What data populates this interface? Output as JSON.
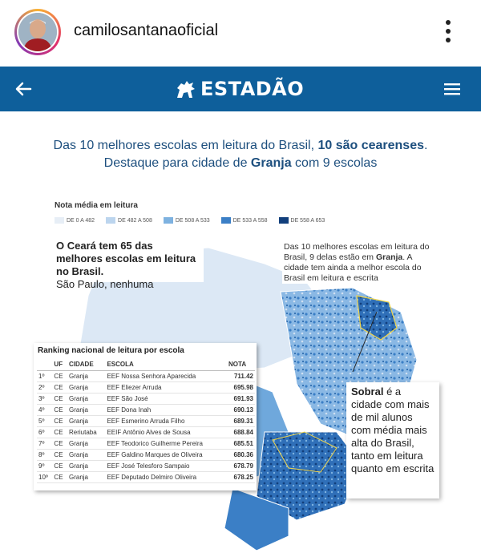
{
  "instagram": {
    "username": "camilosantanaoficial"
  },
  "estadao": {
    "brand": "ESTADÃO"
  },
  "headline": {
    "line1_part1": "Das 10 melhores escolas em leitura do Brasil, ",
    "line1_bold": "10 são cearenses",
    "line1_end": ".",
    "line2_part1": "Destaque para cidade de ",
    "line2_bold": "Granja",
    "line2_part2": " com 9 escolas"
  },
  "legend": {
    "title": "Nota média em leitura",
    "items": [
      {
        "label": "DE 0 A 482",
        "color": "#e7eef6"
      },
      {
        "label": "DE 482 A 508",
        "color": "#bcd5ee"
      },
      {
        "label": "DE 508 A 533",
        "color": "#7eb2e0"
      },
      {
        "label": "DE 533 A 558",
        "color": "#3b7fc6"
      },
      {
        "label": "DE 558 A 653",
        "color": "#123f7c"
      }
    ]
  },
  "callout_left": {
    "bold": "O Ceará tem 65 das melhores escolas em leitura no Brasil.",
    "normal": "São Paulo, nenhuma"
  },
  "callout_right": {
    "part1": "Das 10 melhores escolas em leitura do Brasil, 9 delas estão em ",
    "bold": "Granja",
    "part2": ". A cidade tem ainda a melhor escola do Brasil em leitura e escrita"
  },
  "ranking": {
    "title": "Ranking nacional de leitura por escola",
    "headers": [
      "",
      "UF",
      "CIDADE",
      "ESCOLA",
      "NOTA"
    ],
    "rows": [
      [
        "1º",
        "CE",
        "Granja",
        "EEF Nossa Senhora Aparecida",
        "711.42"
      ],
      [
        "2º",
        "CE",
        "Granja",
        "EEF Eliezer Arruda",
        "695.98"
      ],
      [
        "3º",
        "CE",
        "Granja",
        "EEF São José",
        "691.93"
      ],
      [
        "4º",
        "CE",
        "Granja",
        "EEF Dona Inah",
        "690.13"
      ],
      [
        "5º",
        "CE",
        "Granja",
        "EEF Esmerino Arruda Filho",
        "689.31"
      ],
      [
        "6º",
        "CE",
        "Reriutaba",
        "EEIF Antônio Alves de Sousa",
        "688.84"
      ],
      [
        "7º",
        "CE",
        "Granja",
        "EEF Teodorico Guilherme Pereira",
        "685.51"
      ],
      [
        "8º",
        "CE",
        "Granja",
        "EEF Galdino Marques de Oliveira",
        "680.36"
      ],
      [
        "9º",
        "CE",
        "Granja",
        "EEF José Telesforo Sampaio",
        "678.79"
      ],
      [
        "10º",
        "CE",
        "Granja",
        "EEF Deputado Delmiro Oliveira",
        "678.25"
      ]
    ]
  },
  "sobral": {
    "bold": "Sobral",
    "text": " é a cidade com mais de mil alunos com média mais alta do Brasil, tanto em leitura quanto em escrita"
  }
}
